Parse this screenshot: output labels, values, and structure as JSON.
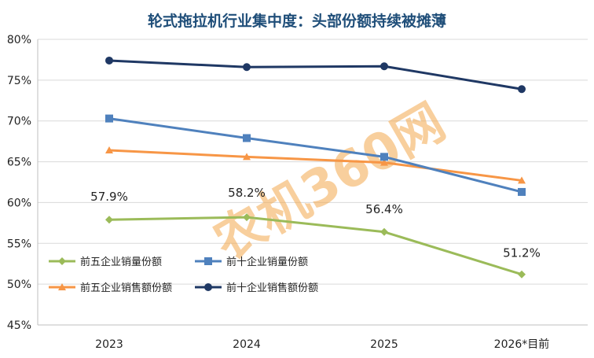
{
  "chart_data": {
    "type": "line",
    "title": "轮式拖拉机行业集中度：头部份额持续被摊薄",
    "categories": [
      "2023",
      "2024",
      "2025",
      "2026*目前"
    ],
    "y_ticks": [
      "45%",
      "50%",
      "55%",
      "60%",
      "65%",
      "70%",
      "75%",
      "80%"
    ],
    "ylim": [
      45,
      80
    ],
    "grid": true,
    "legend_position": "bottom-left",
    "series": [
      {
        "name": "前五企业销量份额",
        "color": "#9bbb59",
        "marker": "diamond",
        "values": [
          57.9,
          58.2,
          56.4,
          51.2
        ],
        "labels": [
          "57.9%",
          "58.2%",
          "56.4%",
          "51.2%"
        ]
      },
      {
        "name": "前十企业销量份额",
        "color": "#4f81bd",
        "marker": "square",
        "values": [
          70.3,
          67.9,
          65.6,
          61.3
        ]
      },
      {
        "name": "前五企业销售额份额",
        "color": "#f79646",
        "marker": "triangle",
        "values": [
          66.4,
          65.6,
          64.9,
          62.7
        ]
      },
      {
        "name": "前十企业销售额份额",
        "color": "#1f3864",
        "marker": "circle",
        "values": [
          77.4,
          76.6,
          76.7,
          73.9
        ]
      }
    ]
  },
  "watermark": {
    "text": "农机360网",
    "color": "#f4a94e"
  }
}
